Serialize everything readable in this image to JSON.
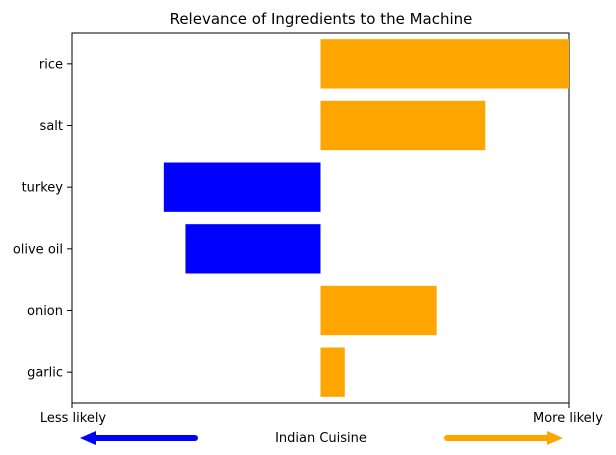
{
  "chart_data": {
    "type": "bar",
    "orientation": "horizontal",
    "title": "Relevance of Ingredients to the Machine",
    "categories": [
      "rice",
      "salt",
      "turkey",
      "olive oil",
      "onion",
      "garlic"
    ],
    "values": [
      0.92,
      0.61,
      -0.58,
      -0.5,
      0.43,
      0.09
    ],
    "colors": [
      "#FFA500",
      "#FFA500",
      "#0000FF",
      "#0000FF",
      "#FFA500",
      "#FFA500"
    ],
    "xlim": [
      -0.92,
      0.92
    ],
    "x_ticks": [],
    "grid": false,
    "xaxis_endpoints": {
      "left_label": "Less likely",
      "right_label": "More likely"
    },
    "xlabel": "Indian Cuisine",
    "arrows": [
      {
        "direction": "left",
        "color": "#0000FF"
      },
      {
        "direction": "right",
        "color": "#FFA500"
      }
    ],
    "legend": null
  }
}
